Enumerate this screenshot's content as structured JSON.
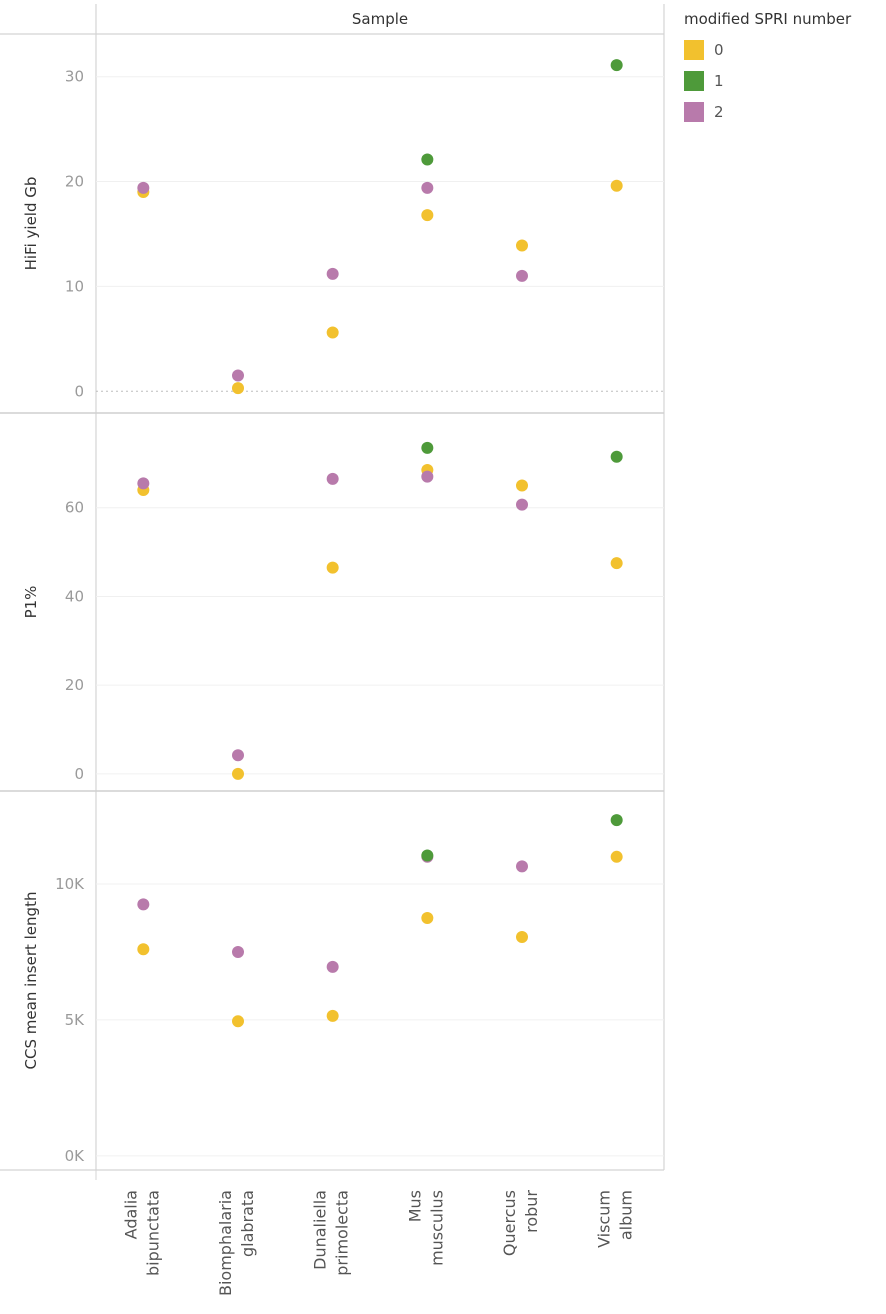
{
  "chart_data": {
    "type": "scatter",
    "header": "Sample",
    "categories": [
      [
        "Adalia",
        "bipunctata"
      ],
      [
        "Biomphalaria",
        "glabrata"
      ],
      [
        "Dunaliella",
        "primolecta"
      ],
      [
        "Mus",
        "musculus"
      ],
      [
        "Quercus",
        "robur"
      ],
      [
        "Viscum",
        "album"
      ]
    ],
    "legend": {
      "title": "modified SPRI number",
      "position": "top-right",
      "entries": [
        {
          "label": "0",
          "color": "#f2c12e"
        },
        {
          "label": "1",
          "color": "#4e9a3a"
        },
        {
          "label": "2",
          "color": "#b87aab"
        }
      ]
    },
    "panels": [
      {
        "ylabel": "HiFi yield Gb",
        "ylim": [
          -1.5,
          33.5
        ],
        "ticks": [
          0,
          10,
          20,
          30
        ],
        "tick_labels": [
          "0",
          "10",
          "20",
          "30"
        ],
        "zero_line": true,
        "series": [
          {
            "name": "0",
            "values": [
              19.0,
              0.3,
              5.6,
              16.8,
              13.9,
              19.6
            ]
          },
          {
            "name": "1",
            "values": [
              null,
              null,
              null,
              22.1,
              null,
              31.1
            ]
          },
          {
            "name": "2",
            "values": [
              19.4,
              1.5,
              11.2,
              19.4,
              11.0,
              null
            ]
          }
        ]
      },
      {
        "ylabel": "P1%",
        "ylim": [
          -2.5,
          80
        ],
        "ticks": [
          0,
          20,
          40,
          60
        ],
        "tick_labels": [
          "0",
          "20",
          "40",
          "60"
        ],
        "zero_line": false,
        "series": [
          {
            "name": "0",
            "values": [
              64.0,
              0.0,
              46.5,
              68.5,
              65.0,
              47.5
            ]
          },
          {
            "name": "1",
            "values": [
              null,
              null,
              null,
              73.5,
              null,
              71.5
            ]
          },
          {
            "name": "2",
            "values": [
              65.5,
              4.2,
              66.5,
              67.0,
              60.7,
              null
            ]
          }
        ]
      },
      {
        "ylabel": "CCS mean insert length",
        "ylim": [
          -300,
          13200
        ],
        "ticks": [
          0,
          5000,
          10000
        ],
        "tick_labels": [
          "0K",
          "5K",
          "10K"
        ],
        "zero_line": false,
        "series": [
          {
            "name": "0",
            "values": [
              7600,
              4950,
              5150,
              8750,
              8050,
              11000
            ]
          },
          {
            "name": "1",
            "values": [
              null,
              null,
              null,
              11050,
              null,
              12350
            ]
          },
          {
            "name": "2",
            "values": [
              9250,
              7500,
              6950,
              11000,
              10650,
              null
            ]
          }
        ]
      }
    ]
  }
}
